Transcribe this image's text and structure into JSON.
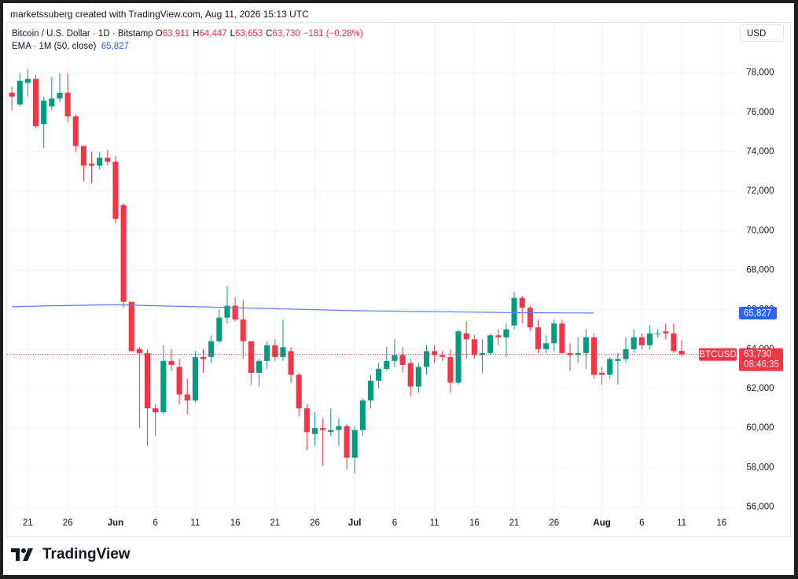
{
  "attribution": "marketssuberg created with TradingView.com, Aug 11, 2026 15:13 UTC",
  "brand": "TradingView",
  "chart_data": {
    "type": "candlestick",
    "title": "Bitcoin / U.S. Dollar · 1D · Bitstamp",
    "ohlc_legend": [
      {
        "label": "O",
        "value": "63,911"
      },
      {
        "label": "H",
        "value": "64,447"
      },
      {
        "label": "L",
        "value": "63,653"
      },
      {
        "label": "C",
        "value": "63,730"
      }
    ],
    "change": "−181 (−0.28%)",
    "currency": "USD",
    "symbol": "BTCUSD",
    "last_price_label": "63,730",
    "countdown": "08:46:35",
    "up_color": "#089981",
    "down_color": "#f23645",
    "grid": true,
    "x": [
      "2026-05-19",
      "2026-05-20",
      "2026-05-21",
      "2026-05-22",
      "2026-05-23",
      "2026-05-24",
      "2026-05-25",
      "2026-05-26",
      "2026-05-27",
      "2026-05-28",
      "2026-05-29",
      "2026-05-30",
      "2026-05-31",
      "2026-06-01",
      "2026-06-02",
      "2026-06-03",
      "2026-06-04",
      "2026-06-05",
      "2026-06-06",
      "2026-06-07",
      "2026-06-08",
      "2026-06-09",
      "2026-06-10",
      "2026-06-11",
      "2026-06-12",
      "2026-06-13",
      "2026-06-14",
      "2026-06-15",
      "2026-06-16",
      "2026-06-17",
      "2026-06-18",
      "2026-06-19",
      "2026-06-20",
      "2026-06-21",
      "2026-06-22",
      "2026-06-23",
      "2026-06-24",
      "2026-06-25",
      "2026-06-26",
      "2026-06-27",
      "2026-06-28",
      "2026-06-29",
      "2026-06-30",
      "2026-07-01",
      "2026-07-02",
      "2026-07-03",
      "2026-07-04",
      "2026-07-05",
      "2026-07-06",
      "2026-07-07",
      "2026-07-08",
      "2026-07-09",
      "2026-07-10",
      "2026-07-11",
      "2026-07-12",
      "2026-07-13",
      "2026-07-14",
      "2026-07-15",
      "2026-07-16",
      "2026-07-17",
      "2026-07-18",
      "2026-07-19",
      "2026-07-20",
      "2026-07-21",
      "2026-07-22",
      "2026-07-23",
      "2026-07-24",
      "2026-07-25",
      "2026-07-26",
      "2026-07-27",
      "2026-07-28",
      "2026-07-29",
      "2026-07-30",
      "2026-07-31",
      "2026-08-01",
      "2026-08-02",
      "2026-08-03",
      "2026-08-04",
      "2026-08-05",
      "2026-08-06",
      "2026-08-07",
      "2026-08-08",
      "2026-08-09",
      "2026-08-10",
      "2026-08-11"
    ],
    "open": [
      77000,
      76400,
      77500,
      77700,
      75400,
      76300,
      76700,
      77000,
      75800,
      74300,
      73400,
      73300,
      73700,
      73500,
      71300,
      66400,
      64000,
      63800,
      61000,
      60800,
      63400,
      63100,
      61700,
      61400,
      63600,
      63600,
      64400,
      65600,
      66200,
      65500,
      64400,
      62800,
      63400,
      64200,
      63600,
      63900,
      62700,
      61000,
      59700,
      60000,
      59800,
      59900,
      60100,
      58500,
      59900,
      61400,
      62400,
      63000,
      63400,
      63700,
      63300,
      62100,
      63100,
      63900,
      63700,
      63600,
      62300,
      64800,
      64500,
      63700,
      63800,
      64700,
      64600,
      65200,
      66600,
      66100,
      65100,
      64000,
      64300,
      65300,
      63800,
      63700,
      63800,
      64600,
      62800,
      62700,
      63400,
      63500,
      64000,
      64600,
      64200,
      64800,
      64900,
      64800,
      63911
    ],
    "high": [
      77300,
      78000,
      78200,
      77900,
      76800,
      77800,
      78000,
      78000,
      75900,
      74200,
      74000,
      74000,
      74100,
      73800,
      71400,
      66400,
      64100,
      64000,
      61200,
      64200,
      64000,
      63500,
      62500,
      63900,
      64000,
      64700,
      66000,
      67200,
      66600,
      66500,
      64400,
      63500,
      64400,
      64500,
      65500,
      64100,
      62800,
      61200,
      60800,
      60500,
      61000,
      60500,
      60200,
      60100,
      61500,
      62700,
      63300,
      64100,
      64500,
      64100,
      63500,
      63300,
      64200,
      64200,
      63900,
      64000,
      65000,
      65400,
      64700,
      64500,
      64800,
      65000,
      65300,
      66900,
      66700,
      66200,
      65500,
      64700,
      65500,
      65500,
      64300,
      64600,
      65000,
      64800,
      63100,
      63600,
      63800,
      64600,
      65000,
      64800,
      65200,
      65000,
      65300,
      65300,
      64447
    ],
    "low": [
      76100,
      76300,
      76800,
      75200,
      74200,
      76100,
      76500,
      75500,
      74000,
      72500,
      72400,
      73100,
      73300,
      70400,
      66100,
      63900,
      60000,
      59100,
      59600,
      60700,
      62900,
      61200,
      60700,
      61300,
      62800,
      63300,
      64300,
      65300,
      65400,
      63500,
      62200,
      62100,
      63000,
      63400,
      63400,
      62300,
      60600,
      58900,
      59100,
      58100,
      59600,
      59100,
      57900,
      57700,
      59600,
      61000,
      62000,
      62900,
      63100,
      62800,
      61600,
      61800,
      62700,
      63300,
      63400,
      61800,
      62200,
      63500,
      63500,
      62800,
      63700,
      64200,
      63600,
      65000,
      65300,
      64900,
      63800,
      63800,
      63900,
      63800,
      62900,
      63300,
      63000,
      62500,
      62200,
      62500,
      62200,
      63300,
      63800,
      64000,
      64000,
      64600,
      64500,
      63800,
      63653
    ],
    "close": [
      76800,
      77600,
      77700,
      75300,
      76600,
      76700,
      77000,
      75800,
      74300,
      73300,
      73300,
      73700,
      73500,
      70600,
      66400,
      63900,
      63800,
      61000,
      60800,
      63400,
      63200,
      61700,
      61400,
      63600,
      63500,
      64400,
      65600,
      66200,
      65500,
      64400,
      62800,
      63400,
      64200,
      63600,
      64100,
      62700,
      61000,
      59800,
      60000,
      59900,
      59900,
      60100,
      58500,
      59900,
      61400,
      62400,
      63000,
      63400,
      63700,
      63200,
      62100,
      63100,
      63900,
      63700,
      63600,
      62300,
      64900,
      64500,
      63700,
      63800,
      64700,
      64600,
      65000,
      66600,
      66100,
      65100,
      64000,
      64300,
      65300,
      63800,
      63700,
      63800,
      64600,
      62700,
      62700,
      63500,
      63500,
      64000,
      64600,
      64200,
      64800,
      64800,
      64800,
      63900,
      63730
    ],
    "series": [
      {
        "name": "EMA · 1M (50, close)",
        "color": "#5b7cfa",
        "last_label": "65,827",
        "values": [
          66150,
          66160,
          66170,
          66180,
          66190,
          66200,
          66205,
          66210,
          66220,
          66225,
          66230,
          66240,
          66245,
          66250,
          66240,
          66230,
          66220,
          66210,
          66200,
          66190,
          66180,
          66170,
          66160,
          66150,
          66140,
          66130,
          66120,
          66110,
          66100,
          66090,
          66080,
          66070,
          66060,
          66050,
          66040,
          66030,
          66020,
          66010,
          66000,
          65990,
          65980,
          65970,
          65960,
          65950,
          65945,
          65940,
          65935,
          65930,
          65925,
          65920,
          65915,
          65910,
          65905,
          65900,
          65895,
          65890,
          65885,
          65880,
          65875,
          65870,
          65865,
          65860,
          65855,
          65850,
          65848,
          65846,
          65844,
          65842,
          65840,
          65838,
          65836,
          65834,
          65832,
          65827,
          null,
          null,
          null,
          null,
          null,
          null,
          null,
          null,
          null,
          null,
          null
        ]
      }
    ],
    "xlim": [
      "2026-05-18",
      "2026-08-18"
    ],
    "xticks": [
      {
        "value": "2026-05-21",
        "label": "21"
      },
      {
        "value": "2026-05-26",
        "label": "26"
      },
      {
        "value": "2026-06-01",
        "label": "Jun"
      },
      {
        "value": "2026-06-06",
        "label": "6"
      },
      {
        "value": "2026-06-11",
        "label": "11"
      },
      {
        "value": "2026-06-16",
        "label": "16"
      },
      {
        "value": "2026-06-21",
        "label": "21"
      },
      {
        "value": "2026-06-26",
        "label": "26"
      },
      {
        "value": "2026-07-01",
        "label": "Jul"
      },
      {
        "value": "2026-07-06",
        "label": "6"
      },
      {
        "value": "2026-07-11",
        "label": "11"
      },
      {
        "value": "2026-07-16",
        "label": "16"
      },
      {
        "value": "2026-07-21",
        "label": "21"
      },
      {
        "value": "2026-07-26",
        "label": "26"
      },
      {
        "value": "2026-08-01",
        "label": "Aug"
      },
      {
        "value": "2026-08-06",
        "label": "6"
      },
      {
        "value": "2026-08-11",
        "label": "11"
      },
      {
        "value": "2026-08-16",
        "label": "16"
      }
    ],
    "ylim": [
      55500,
      80500
    ],
    "yticks": [
      {
        "value": 56000,
        "label": "56,000"
      },
      {
        "value": 58000,
        "label": "58,000"
      },
      {
        "value": 60000,
        "label": "60,000"
      },
      {
        "value": 62000,
        "label": "62,000"
      },
      {
        "value": 64000,
        "label": "64,000"
      },
      {
        "value": 66000,
        "label": "66,000"
      },
      {
        "value": 68000,
        "label": "68,000"
      },
      {
        "value": 70000,
        "label": "70,000"
      },
      {
        "value": 72000,
        "label": "72,000"
      },
      {
        "value": 74000,
        "label": "74,000"
      },
      {
        "value": 76000,
        "label": "76,000"
      },
      {
        "value": 78000,
        "label": "78,000"
      }
    ]
  }
}
